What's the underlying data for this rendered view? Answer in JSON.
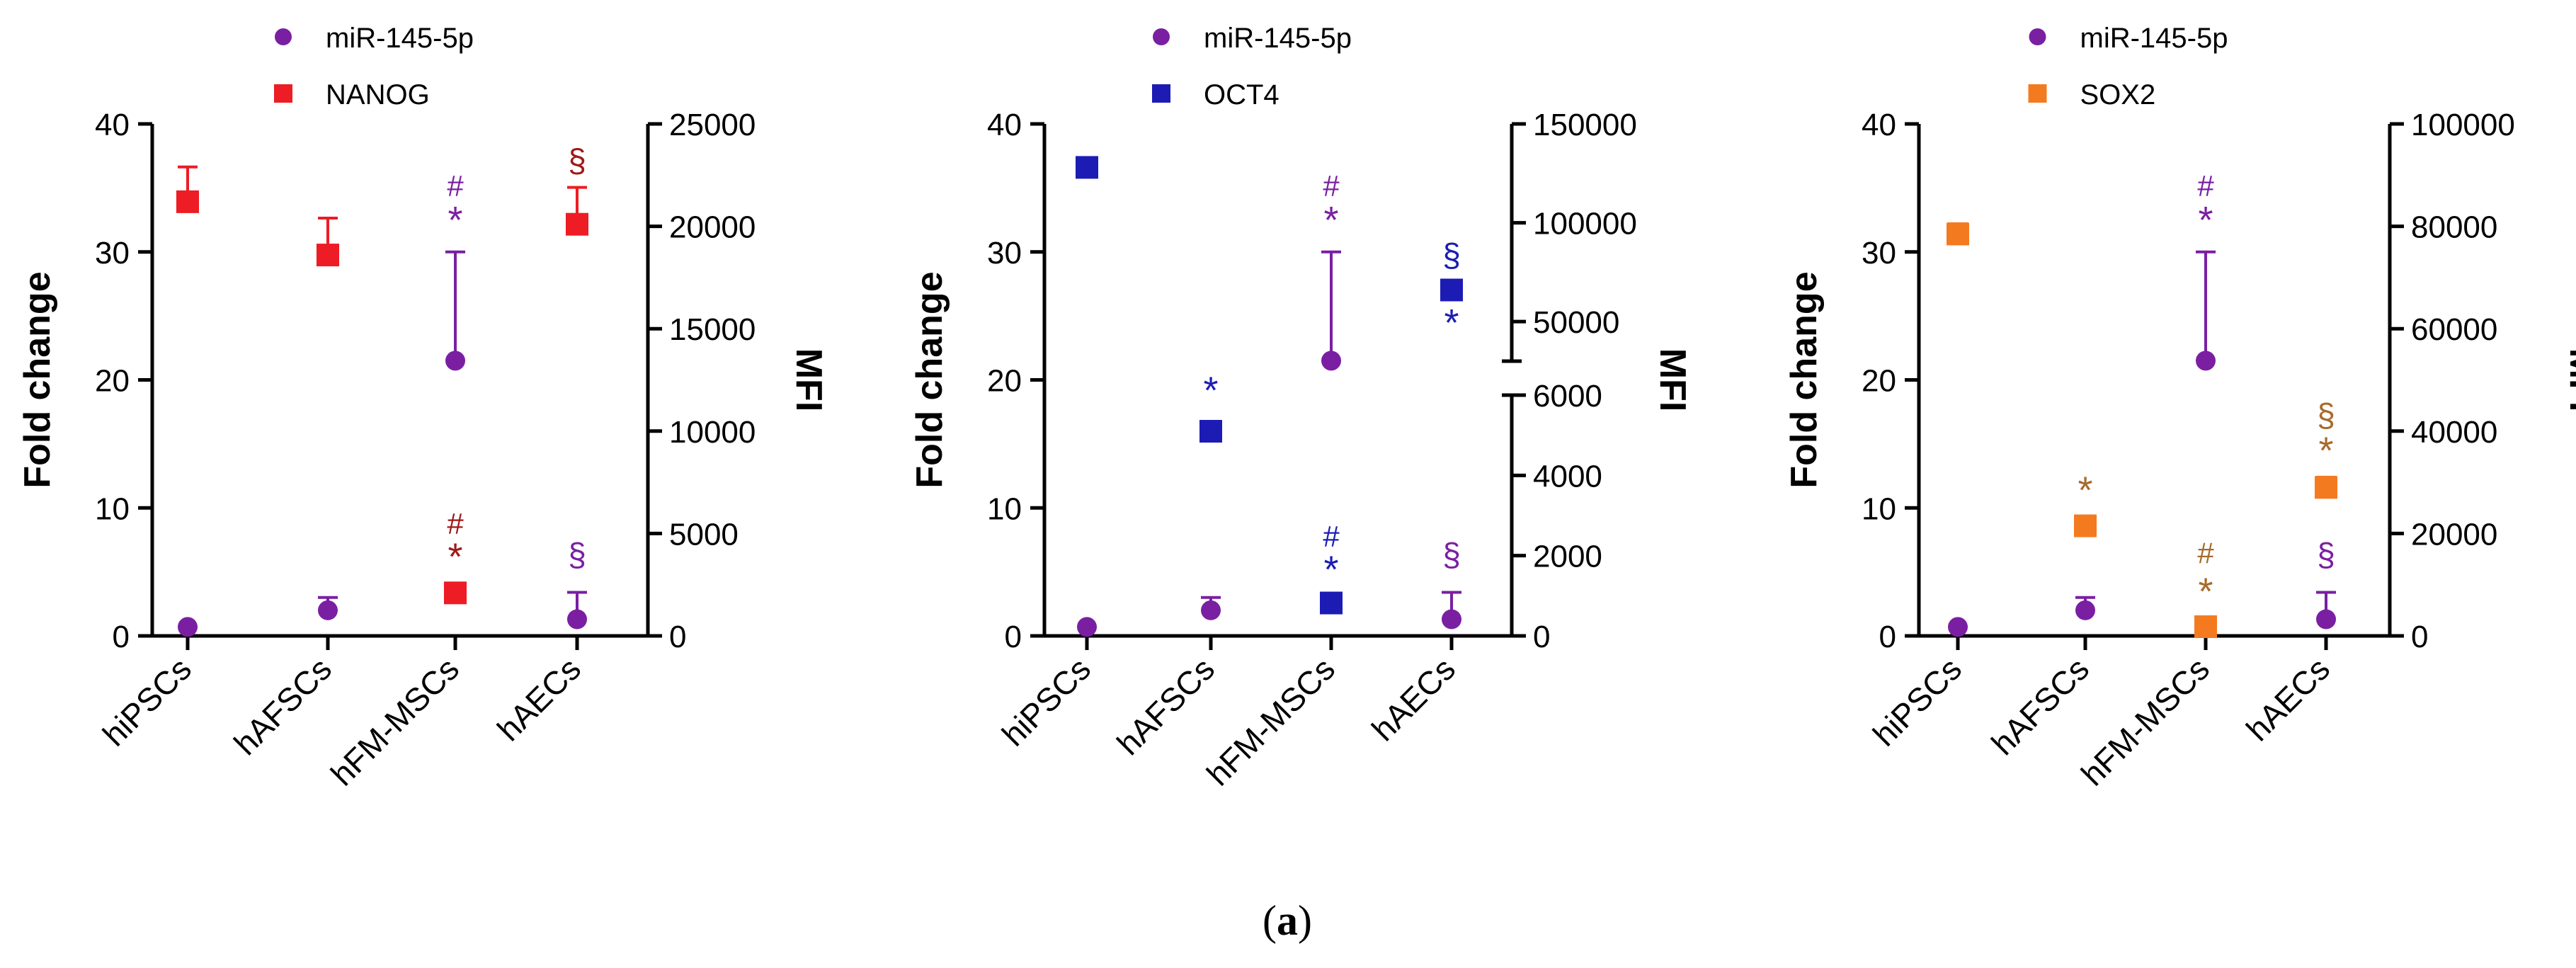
{
  "caption": {
    "open": "(",
    "letter": "a",
    "close": ")"
  },
  "chart_data": [
    {
      "type": "scatter",
      "categories": [
        "hiPSCs",
        "hAFSCs",
        "hFM-MSCs",
        "hAECs"
      ],
      "ylabel_left": "Fold change",
      "ylabel_right": "MFI",
      "ylim_left": [
        0,
        40
      ],
      "yticks_left": [
        0,
        10,
        20,
        30,
        40
      ],
      "ylim_right": [
        0,
        25000
      ],
      "yticks_right": [
        0,
        5000,
        10000,
        15000,
        20000,
        25000
      ],
      "legend": [
        {
          "name": "miR-145-5p",
          "marker": "circle",
          "color": "#7a1fa2"
        },
        {
          "name": "NANOG",
          "marker": "square",
          "color": "#ee1c24"
        }
      ],
      "series": [
        {
          "name": "miR-145-5p",
          "axis": "left",
          "color": "#7a1fa2",
          "marker": "circle",
          "values": [
            0.7,
            2.0,
            21.5,
            1.3
          ],
          "err_upper": [
            0.7,
            3.0,
            30,
            3.4
          ]
        },
        {
          "name": "NANOG",
          "axis": "right",
          "color": "#ee1c24",
          "marker": "square",
          "values": [
            21200,
            18600,
            2100,
            20100
          ],
          "err_upper": [
            22900,
            20400,
            2100,
            21900
          ]
        }
      ],
      "annotations": [
        {
          "text": "#",
          "cat": 2,
          "axis": "left",
          "value": 35.2,
          "color": "#7a1fa2"
        },
        {
          "text": "*",
          "cat": 2,
          "axis": "left",
          "value": 32.3,
          "color": "#7a1fa2"
        },
        {
          "text": "§",
          "cat": 3,
          "axis": "left",
          "value": 37.1,
          "color": "#a01818"
        },
        {
          "text": "#",
          "cat": 2,
          "axis": "left",
          "value": 8.8,
          "color": "#a01818"
        },
        {
          "text": "*",
          "cat": 2,
          "axis": "left",
          "value": 6.0,
          "color": "#a01818"
        },
        {
          "text": "§",
          "cat": 3,
          "axis": "left",
          "value": 6.3,
          "color": "#7a1fa2"
        }
      ]
    },
    {
      "type": "scatter",
      "categories": [
        "hiPSCs",
        "hAFSCs",
        "hFM-MSCs",
        "hAECs"
      ],
      "ylabel_left": "Fold change",
      "ylabel_right": "MFI",
      "ylim_left": [
        0,
        40
      ],
      "yticks_left": [
        0,
        10,
        20,
        30,
        40
      ],
      "right_axis_broken": true,
      "ylim_right_lower": [
        0,
        6000
      ],
      "yticks_right_lower": [
        0,
        2000,
        4000,
        6000
      ],
      "ylim_right_upper": [
        30000,
        150000
      ],
      "yticks_right_upper": [
        50000,
        100000,
        150000
      ],
      "legend": [
        {
          "name": "miR-145-5p",
          "marker": "circle",
          "color": "#7a1fa2"
        },
        {
          "name": "OCT4",
          "marker": "square",
          "color": "#1c1cb4"
        }
      ],
      "series": [
        {
          "name": "miR-145-5p",
          "axis": "left",
          "color": "#7a1fa2",
          "marker": "circle",
          "values": [
            0.7,
            2.0,
            21.5,
            1.3
          ],
          "err_upper": [
            0.7,
            3.0,
            30,
            3.4
          ]
        },
        {
          "name": "OCT4",
          "axis": "right",
          "color": "#1c1cb4",
          "marker": "square",
          "values": [
            128000,
            5100,
            820,
            66000
          ],
          "err_upper": [
            128000,
            5300,
            820,
            66000
          ]
        }
      ],
      "annotations": [
        {
          "text": "#",
          "cat": 2,
          "axis": "left",
          "value": 35.2,
          "color": "#7a1fa2"
        },
        {
          "text": "*",
          "cat": 2,
          "axis": "left",
          "value": 32.3,
          "color": "#7a1fa2"
        },
        {
          "text": "*",
          "cat": 1,
          "axis": "left",
          "value": 19.0,
          "color": "#1c1cb4"
        },
        {
          "text": "§",
          "cat": 3,
          "axis": "left",
          "value": 29.7,
          "color": "#1c1cb4"
        },
        {
          "text": "#",
          "cat": 3,
          "axis": "left",
          "value": 27.0,
          "color": "#1c1cb4"
        },
        {
          "text": "*",
          "cat": 3,
          "axis": "left",
          "value": 24.3,
          "color": "#1c1cb4"
        },
        {
          "text": "#",
          "cat": 2,
          "axis": "left",
          "value": 7.8,
          "color": "#1c1cb4"
        },
        {
          "text": "*",
          "cat": 2,
          "axis": "left",
          "value": 5.0,
          "color": "#1c1cb4"
        },
        {
          "text": "§",
          "cat": 3,
          "axis": "left",
          "value": 6.3,
          "color": "#7a1fa2"
        }
      ]
    },
    {
      "type": "scatter",
      "categories": [
        "hiPSCs",
        "hAFSCs",
        "hFM-MSCs",
        "hAECs"
      ],
      "ylabel_left": "Fold change",
      "ylabel_right": "MFI",
      "ylim_left": [
        0,
        40
      ],
      "yticks_left": [
        0,
        10,
        20,
        30,
        40
      ],
      "ylim_right": [
        0,
        100000
      ],
      "yticks_right": [
        0,
        20000,
        40000,
        60000,
        80000,
        100000
      ],
      "legend": [
        {
          "name": "miR-145-5p",
          "marker": "circle",
          "color": "#7a1fa2"
        },
        {
          "name": "SOX2",
          "marker": "square",
          "color": "#f47a20"
        }
      ],
      "series": [
        {
          "name": "miR-145-5p",
          "axis": "left",
          "color": "#7a1fa2",
          "marker": "circle",
          "values": [
            0.7,
            2.0,
            21.5,
            1.3
          ],
          "err_upper": [
            0.7,
            3.0,
            30,
            3.4
          ]
        },
        {
          "name": "SOX2",
          "axis": "right",
          "color": "#f47a20",
          "marker": "square",
          "values": [
            78500,
            21500,
            1800,
            29000
          ],
          "err_upper": [
            80500,
            23000,
            1800,
            31000
          ]
        }
      ],
      "annotations": [
        {
          "text": "#",
          "cat": 2,
          "axis": "left",
          "value": 35.2,
          "color": "#7a1fa2"
        },
        {
          "text": "*",
          "cat": 2,
          "axis": "left",
          "value": 32.3,
          "color": "#7a1fa2"
        },
        {
          "text": "*",
          "cat": 1,
          "axis": "left",
          "value": 11.2,
          "color": "#a86a2c"
        },
        {
          "text": "§",
          "cat": 3,
          "axis": "left",
          "value": 17.2,
          "color": "#a86a2c"
        },
        {
          "text": "*",
          "cat": 3,
          "axis": "left",
          "value": 14.3,
          "color": "#a86a2c"
        },
        {
          "text": "#",
          "cat": 2,
          "axis": "left",
          "value": 6.5,
          "color": "#a86a2c"
        },
        {
          "text": "*",
          "cat": 2,
          "axis": "left",
          "value": 3.3,
          "color": "#a86a2c"
        },
        {
          "text": "§",
          "cat": 3,
          "axis": "left",
          "value": 6.3,
          "color": "#7a1fa2"
        }
      ]
    }
  ]
}
